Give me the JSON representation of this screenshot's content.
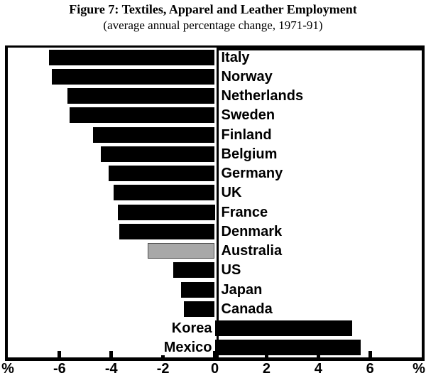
{
  "figure": {
    "title": "Figure 7: Textiles, Apparel and Leather Employment",
    "subtitle": "(average annual percentage change, 1971-91)"
  },
  "chart_data": {
    "type": "bar",
    "orientation": "horizontal",
    "title": "Figure 7: Textiles, Apparel and Leather Employment",
    "subtitle": "(average annual percentage change, 1971-91)",
    "categories": [
      "Italy",
      "Norway",
      "Netherlands",
      "Sweden",
      "Finland",
      "Belgium",
      "Germany",
      "UK",
      "France",
      "Denmark",
      "Australia",
      "US",
      "Japan",
      "Canada",
      "Korea",
      "Mexico"
    ],
    "values": [
      -6.4,
      -6.3,
      -5.7,
      -5.6,
      -4.7,
      -4.4,
      -4.1,
      -3.9,
      -3.75,
      -3.7,
      -2.6,
      -1.6,
      -1.3,
      -1.2,
      5.3,
      5.65
    ],
    "highlight_category": "Australia",
    "bar_colors": {
      "default": "#000000",
      "highlight": "#a8a8a8",
      "highlight_border": "#4d4d4d"
    },
    "xlim": [
      -8,
      8
    ],
    "x_ticks": [
      -6,
      -4,
      -2,
      0,
      2,
      4,
      6
    ],
    "x_tick_labels": [
      "-6",
      "-4",
      "-2",
      "0",
      "2",
      "4",
      "6"
    ],
    "axis_unit_labels": {
      "left": "%",
      "right": "%"
    },
    "grid": false,
    "legend": false
  }
}
